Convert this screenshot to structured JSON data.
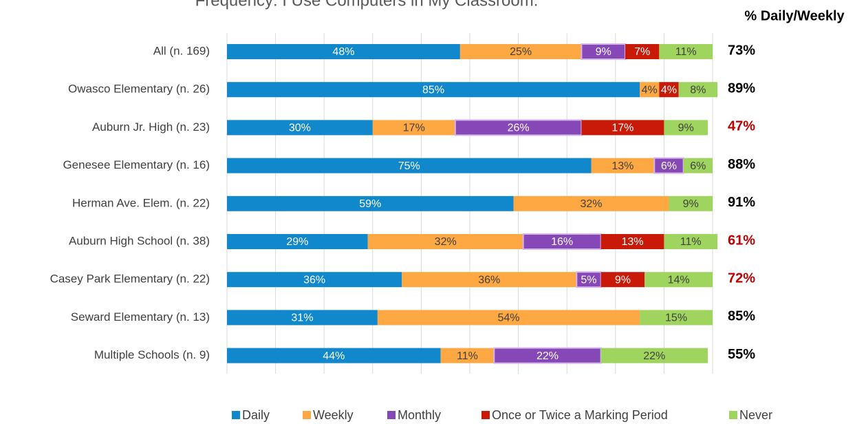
{
  "chart_data": {
    "type": "stacked-barh",
    "title": "Frequency: I Use Computers in My Classroom.",
    "categories": [
      "All (n. 169)",
      "Owasco Elementary (n. 26)",
      "Auburn Jr. High (n. 23)",
      "Genesee Elementary (n. 16)",
      "Herman Ave. Elem. (n. 22)",
      "Auburn High School (n. 38)",
      "Casey Park Elementary (n. 22)",
      "Seward Elementary (n. 13)",
      "Multiple Schools (n. 9)"
    ],
    "series": [
      {
        "name": "Daily",
        "color": "#1187cc",
        "values": [
          48,
          85,
          30,
          75,
          59,
          29,
          36,
          31,
          44
        ],
        "value_labels": [
          "48%",
          "85%",
          "30%",
          "75%",
          "59%",
          "29%",
          "36%",
          "31%",
          "44%"
        ]
      },
      {
        "name": "Weekly",
        "color": "#fda843",
        "values": [
          25,
          4,
          17,
          13,
          32,
          32,
          36,
          54,
          11
        ],
        "value_labels": [
          "25%",
          "4%",
          "17%",
          "13%",
          "32%",
          "32%",
          "36%",
          "54%",
          "11%"
        ]
      },
      {
        "name": "Monthly",
        "color": "#8548b6",
        "values": [
          9,
          null,
          26,
          6,
          null,
          16,
          5,
          null,
          22
        ],
        "value_labels": [
          "9%",
          null,
          "26%",
          "6%",
          null,
          "16%",
          "5%",
          null,
          "22%"
        ]
      },
      {
        "name": "Once or Twice a Marking Period",
        "color": "#c91a09",
        "values": [
          7,
          4,
          17,
          null,
          null,
          13,
          9,
          null,
          null
        ],
        "value_labels": [
          "7%",
          "4%",
          "17%",
          null,
          null,
          "13%",
          "9%",
          null,
          null
        ]
      },
      {
        "name": "Never",
        "color": "#9fd45e",
        "values": [
          11,
          8,
          9,
          6,
          9,
          11,
          14,
          15,
          22
        ],
        "value_labels": [
          "11%",
          "8%",
          "9%",
          "6%",
          "9%",
          "11%",
          "14%",
          "15%",
          "22%"
        ]
      }
    ],
    "xlim": [
      0,
      100
    ],
    "xticks": [
      0,
      10,
      20,
      30,
      40,
      50,
      60,
      70,
      80,
      90,
      100
    ],
    "grid": true,
    "totals": {
      "header": "% Daily/Weekly",
      "labels": [
        "73%",
        "89%",
        "47%",
        "88%",
        "91%",
        "61%",
        "72%",
        "85%",
        "55%"
      ],
      "colors": [
        "#000000",
        "#000000",
        "#c00000",
        "#000000",
        "#000000",
        "#c00000",
        "#c00000",
        "#000000",
        "#000000"
      ]
    },
    "legend": "bottom"
  }
}
